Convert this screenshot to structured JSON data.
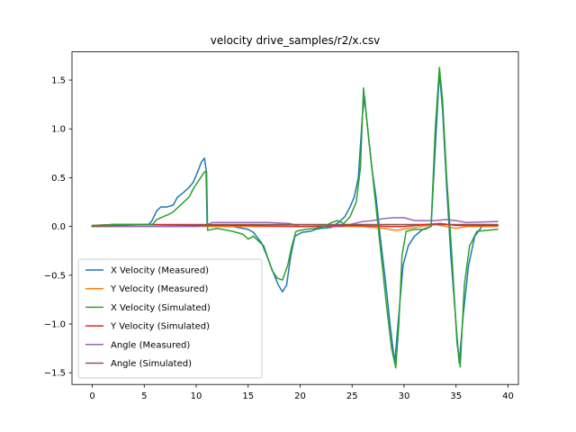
{
  "chart_data": {
    "type": "line",
    "title": "velocity drive_samples/r2/x.csv",
    "xlabel": "",
    "ylabel": "",
    "xlim": [
      -1.95,
      41
    ],
    "ylim": [
      -1.62,
      1.79
    ],
    "xticks": [
      0,
      5,
      10,
      15,
      20,
      25,
      30,
      35,
      40
    ],
    "yticks": [
      -1.5,
      -1.0,
      -0.5,
      0.0,
      0.5,
      1.0,
      1.5
    ],
    "ytick_labels": [
      "−1.5",
      "−1.0",
      "−0.5",
      "0.0",
      "0.5",
      "1.0",
      "1.5"
    ],
    "grid": false,
    "legend_position": "lower-left",
    "series": [
      {
        "name": "X Velocity (Measured)",
        "color": "#1f77b4",
        "points": [
          [
            0,
            0
          ],
          [
            0.5,
            0.01
          ],
          [
            2,
            0.02
          ],
          [
            4,
            0.02
          ],
          [
            5.4,
            0.02
          ],
          [
            5.7,
            0.05
          ],
          [
            6.2,
            0.16
          ],
          [
            6.6,
            0.2
          ],
          [
            7.2,
            0.2
          ],
          [
            7.8,
            0.22
          ],
          [
            8.2,
            0.3
          ],
          [
            8.8,
            0.35
          ],
          [
            9.3,
            0.4
          ],
          [
            9.7,
            0.45
          ],
          [
            10.1,
            0.55
          ],
          [
            10.5,
            0.66
          ],
          [
            10.8,
            0.7
          ],
          [
            10.95,
            0.58
          ],
          [
            11.05,
            0.02
          ],
          [
            12,
            0.01
          ],
          [
            13.5,
            0.0
          ],
          [
            15,
            -0.03
          ],
          [
            15.5,
            -0.06
          ],
          [
            16.3,
            -0.17
          ],
          [
            16.9,
            -0.33
          ],
          [
            17.4,
            -0.47
          ],
          [
            17.9,
            -0.6
          ],
          [
            18.3,
            -0.67
          ],
          [
            18.7,
            -0.6
          ],
          [
            19.1,
            -0.3
          ],
          [
            19.5,
            -0.1
          ],
          [
            20.2,
            -0.06
          ],
          [
            21,
            -0.05
          ],
          [
            21.5,
            -0.03
          ],
          [
            22,
            -0.02
          ],
          [
            23,
            -0.01
          ],
          [
            23.8,
            0.05
          ],
          [
            24.3,
            0.1
          ],
          [
            24.8,
            0.2
          ],
          [
            25.2,
            0.3
          ],
          [
            25.6,
            0.5
          ],
          [
            26,
            1.15
          ],
          [
            26.2,
            1.33
          ],
          [
            26.5,
            1.0
          ],
          [
            26.9,
            0.6
          ],
          [
            27.3,
            0.3
          ],
          [
            27.7,
            -0.1
          ],
          [
            28.2,
            -0.55
          ],
          [
            28.7,
            -1.05
          ],
          [
            29.1,
            -1.4
          ],
          [
            29.5,
            -0.9
          ],
          [
            29.9,
            -0.4
          ],
          [
            30.4,
            -0.2
          ],
          [
            31,
            -0.1
          ],
          [
            31.8,
            -0.03
          ],
          [
            32.6,
            0.0
          ],
          [
            33.0,
            0.8
          ],
          [
            33.4,
            1.58
          ],
          [
            33.7,
            1.2
          ],
          [
            34.1,
            0.4
          ],
          [
            34.5,
            -0.3
          ],
          [
            35.0,
            -1.0
          ],
          [
            35.3,
            -1.4
          ],
          [
            35.7,
            -0.9
          ],
          [
            36.2,
            -0.4
          ],
          [
            36.8,
            -0.1
          ],
          [
            37.5,
            0.0
          ],
          [
            39,
            0.01
          ]
        ]
      },
      {
        "name": "Y Velocity (Measured)",
        "color": "#ff7f0e",
        "points": [
          [
            0,
            0
          ],
          [
            5,
            0.0
          ],
          [
            10,
            0.0
          ],
          [
            11,
            0.0
          ],
          [
            15,
            0.0
          ],
          [
            20,
            0.0
          ],
          [
            26,
            0.0
          ],
          [
            28,
            -0.02
          ],
          [
            29.2,
            -0.04
          ],
          [
            31,
            -0.01
          ],
          [
            33,
            0.02
          ],
          [
            35,
            -0.02
          ],
          [
            36,
            0.0
          ],
          [
            39,
            0.0
          ]
        ]
      },
      {
        "name": "X Velocity (Simulated)",
        "color": "#2ca02c",
        "points": [
          [
            0,
            0
          ],
          [
            0.5,
            0.01
          ],
          [
            2,
            0.02
          ],
          [
            5,
            0.02
          ],
          [
            5.8,
            0.02
          ],
          [
            6.2,
            0.07
          ],
          [
            6.8,
            0.1
          ],
          [
            7.3,
            0.12
          ],
          [
            7.8,
            0.15
          ],
          [
            8.3,
            0.2
          ],
          [
            8.8,
            0.25
          ],
          [
            9.3,
            0.3
          ],
          [
            9.8,
            0.4
          ],
          [
            10.3,
            0.48
          ],
          [
            10.8,
            0.56
          ],
          [
            11.0,
            0.56
          ],
          [
            11.1,
            -0.04
          ],
          [
            12,
            -0.02
          ],
          [
            13.5,
            -0.05
          ],
          [
            14.5,
            -0.08
          ],
          [
            15,
            -0.13
          ],
          [
            15.5,
            -0.1
          ],
          [
            16.5,
            -0.2
          ],
          [
            17.3,
            -0.45
          ],
          [
            17.8,
            -0.53
          ],
          [
            18.3,
            -0.55
          ],
          [
            18.8,
            -0.4
          ],
          [
            19.2,
            -0.2
          ],
          [
            19.6,
            -0.05
          ],
          [
            20.5,
            -0.03
          ],
          [
            21.5,
            -0.02
          ],
          [
            22.3,
            0.0
          ],
          [
            23,
            0.04
          ],
          [
            23.6,
            0.06
          ],
          [
            24.2,
            0.03
          ],
          [
            24.8,
            0.1
          ],
          [
            25.4,
            0.25
          ],
          [
            25.8,
            0.6
          ],
          [
            26.1,
            1.42
          ],
          [
            26.4,
            1.1
          ],
          [
            26.8,
            0.7
          ],
          [
            27.2,
            0.3
          ],
          [
            27.7,
            -0.2
          ],
          [
            28.3,
            -0.8
          ],
          [
            28.8,
            -1.25
          ],
          [
            29.2,
            -1.45
          ],
          [
            29.5,
            -1.0
          ],
          [
            29.8,
            -0.3
          ],
          [
            30.2,
            -0.05
          ],
          [
            31,
            -0.03
          ],
          [
            32,
            -0.03
          ],
          [
            32.6,
            0.0
          ],
          [
            33.0,
            1.0
          ],
          [
            33.4,
            1.63
          ],
          [
            33.7,
            1.3
          ],
          [
            34.1,
            0.5
          ],
          [
            34.6,
            -0.3
          ],
          [
            35.1,
            -1.2
          ],
          [
            35.4,
            -1.44
          ],
          [
            35.8,
            -0.6
          ],
          [
            36.3,
            -0.2
          ],
          [
            37,
            -0.05
          ],
          [
            39,
            -0.03
          ]
        ]
      },
      {
        "name": "Y Velocity (Simulated)",
        "color": "#d62728",
        "points": [
          [
            0,
            0.01
          ],
          [
            2,
            0.02
          ],
          [
            5,
            0.02
          ],
          [
            10,
            0.01
          ],
          [
            15,
            0.01
          ],
          [
            20,
            0.0
          ],
          [
            25,
            0.01
          ],
          [
            28.5,
            0.0
          ],
          [
            30,
            0.0
          ],
          [
            32,
            0.02
          ],
          [
            33.5,
            0.03
          ],
          [
            35,
            0.01
          ],
          [
            39,
            0.01
          ]
        ]
      },
      {
        "name": "Angle (Measured)",
        "color": "#9467bd",
        "points": [
          [
            0,
            0.0
          ],
          [
            5,
            0.0
          ],
          [
            5.5,
            0.0
          ],
          [
            10,
            0.0
          ],
          [
            11,
            0.01
          ],
          [
            11.5,
            0.04
          ],
          [
            13,
            0.04
          ],
          [
            15,
            0.04
          ],
          [
            17,
            0.04
          ],
          [
            19,
            0.03
          ],
          [
            20,
            0.0
          ],
          [
            22,
            0.0
          ],
          [
            24,
            0.0
          ],
          [
            26,
            0.05
          ],
          [
            27,
            0.06
          ],
          [
            28,
            0.08
          ],
          [
            29,
            0.09
          ],
          [
            30,
            0.09
          ],
          [
            31,
            0.06
          ],
          [
            32,
            0.06
          ],
          [
            33,
            0.06
          ],
          [
            34,
            0.07
          ],
          [
            35,
            0.06
          ],
          [
            36,
            0.04
          ],
          [
            39,
            0.05
          ]
        ]
      },
      {
        "name": "Angle (Simulated)",
        "color": "#8c564b",
        "points": [
          [
            0,
            0.0
          ],
          [
            5,
            0.02
          ],
          [
            10,
            0.02
          ],
          [
            15,
            0.02
          ],
          [
            20,
            0.02
          ],
          [
            25,
            0.02
          ],
          [
            30,
            0.02
          ],
          [
            35,
            0.02
          ],
          [
            39,
            0.02
          ]
        ]
      }
    ]
  }
}
